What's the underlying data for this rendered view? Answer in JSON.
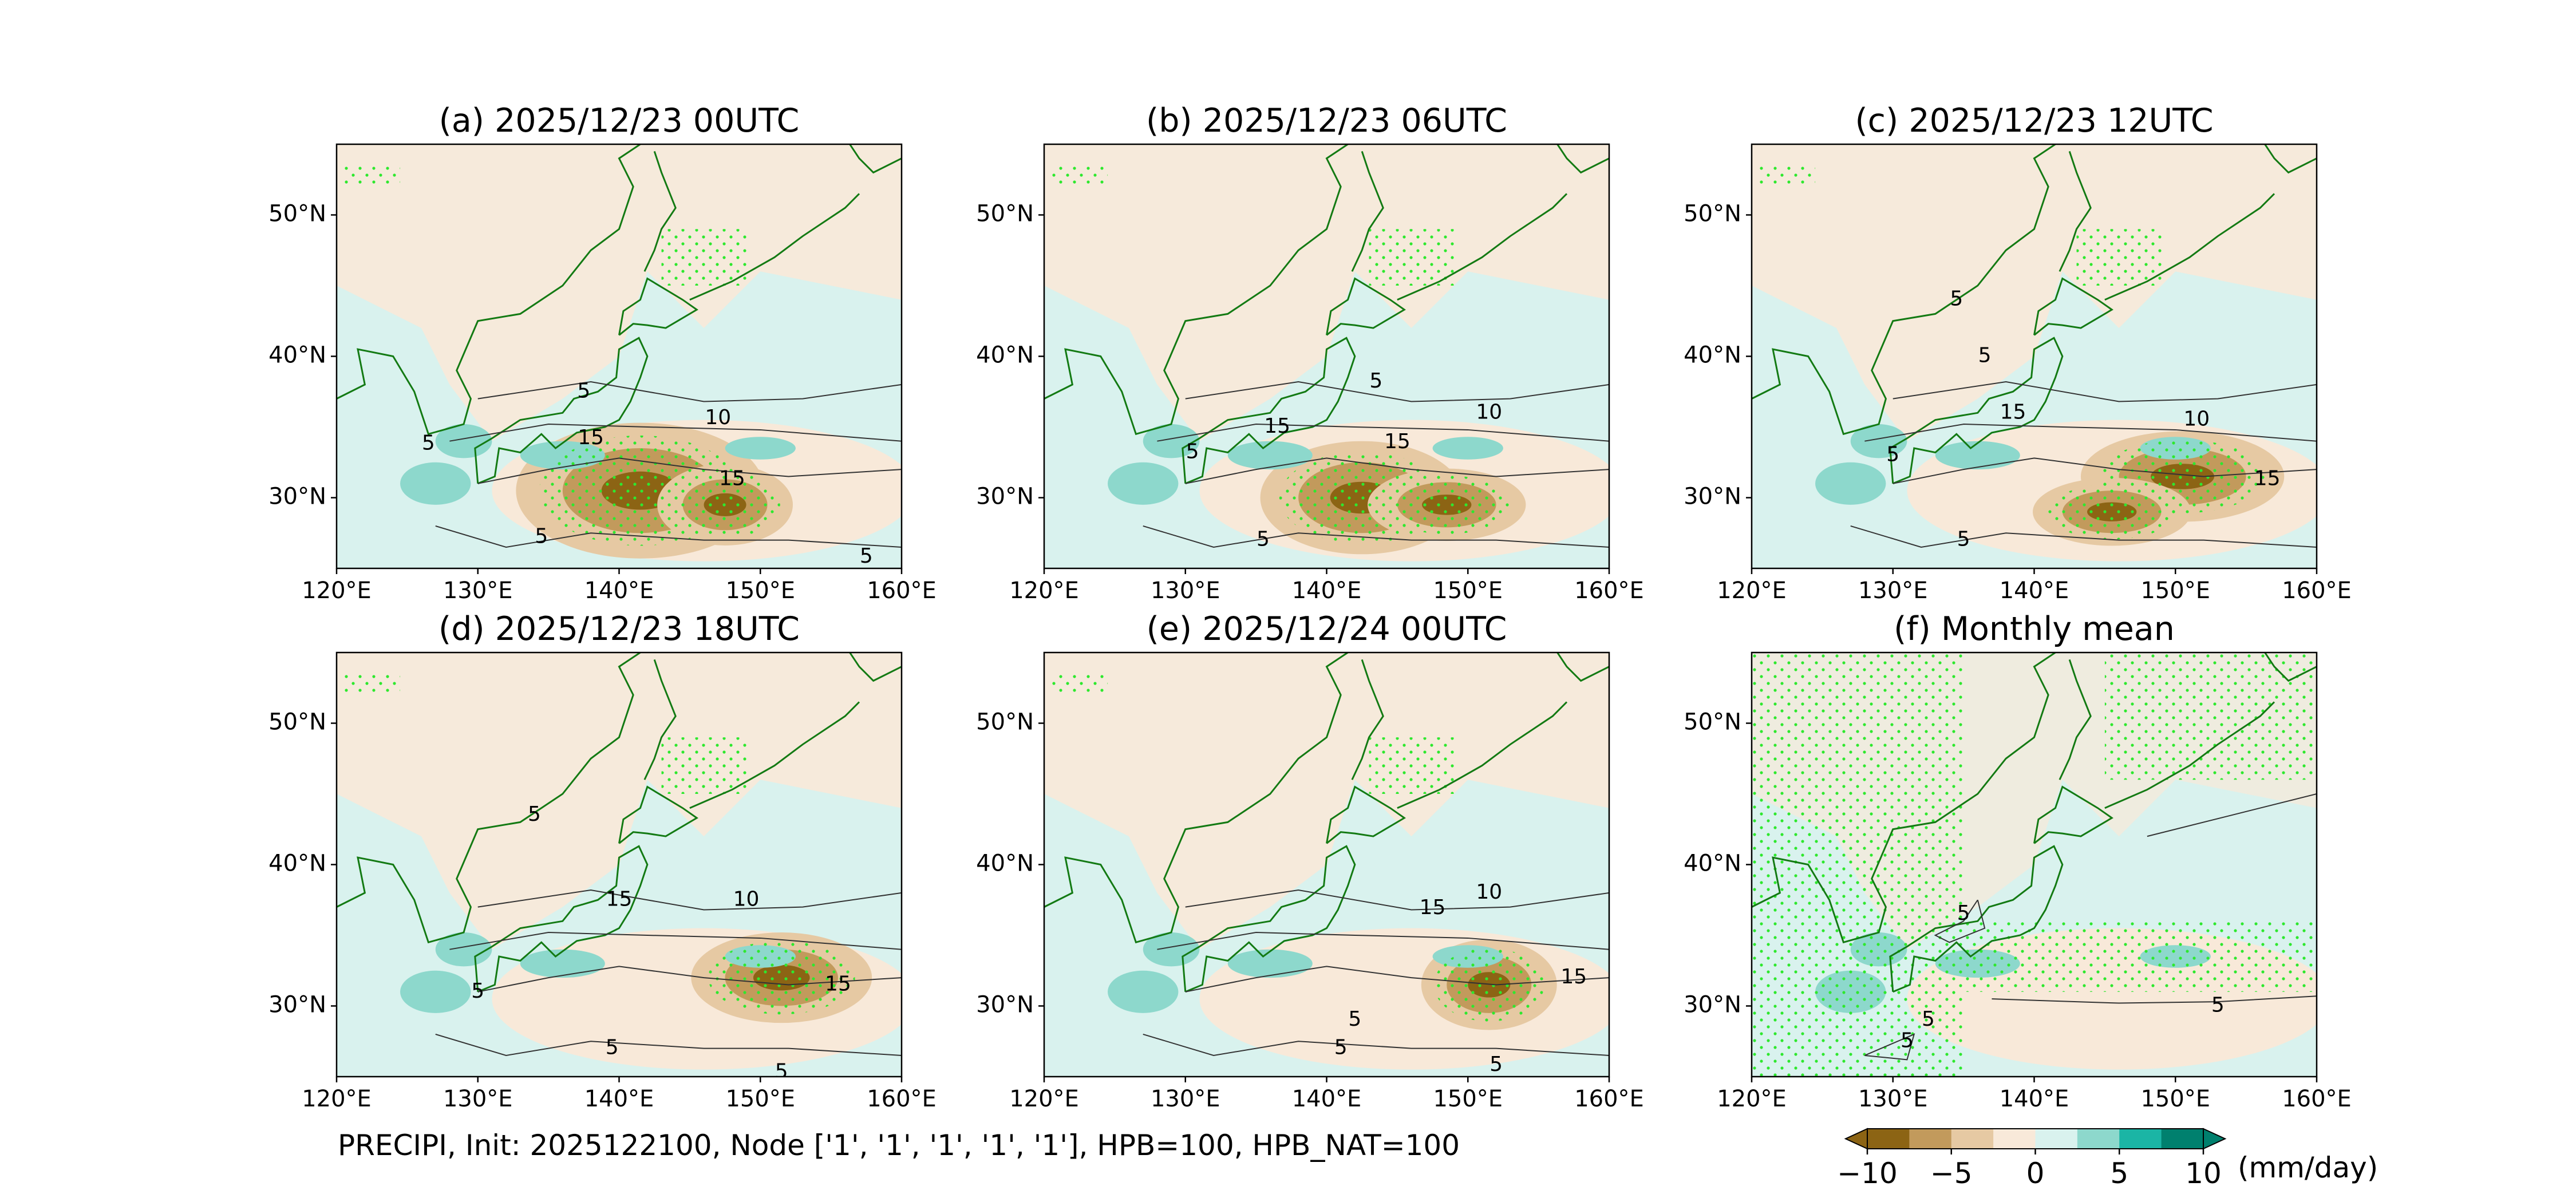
{
  "chart_data": {
    "type": "heatmap",
    "variable": "PRECIPI",
    "footer": "PRECIPI, Init: 2025122100, Node ['1', '1', '1', '1', '1'], HPB=100, HPB_NAT=100",
    "x_ticks": [
      "120°E",
      "130°E",
      "140°E",
      "150°E",
      "160°E"
    ],
    "y_ticks": [
      "30°N",
      "40°N",
      "50°N"
    ],
    "xlim": [
      120,
      160
    ],
    "ylim": [
      25,
      55
    ],
    "colorbar": {
      "levels": [
        -10,
        -7.5,
        -5,
        -2.5,
        0,
        2.5,
        5,
        7.5,
        10
      ],
      "tick_labels": [
        "−10",
        "−5",
        "0",
        "5",
        "10"
      ],
      "tick_values": [
        -10,
        -5,
        0,
        5,
        10
      ],
      "unit": "(mm/day)",
      "colors": [
        "#8c6414",
        "#c29a5c",
        "#e6c9a3",
        "#f8e9d9",
        "#d9f2ee",
        "#8dd8cc",
        "#1bb5a5",
        "#00806e"
      ],
      "extend": "both"
    },
    "panels": [
      {
        "title": "(a) 2025/12/23 00UTC",
        "contour_labels": [
          {
            "text": "5",
            "lon": 126.5,
            "lat": 33.8
          },
          {
            "text": "5",
            "lon": 137.5,
            "lat": 37.5
          },
          {
            "text": "10",
            "lon": 147.0,
            "lat": 35.6
          },
          {
            "text": "15",
            "lon": 138.0,
            "lat": 34.2
          },
          {
            "text": "15",
            "lon": 148.0,
            "lat": 31.3
          },
          {
            "text": "5",
            "lon": 134.5,
            "lat": 27.2
          },
          {
            "text": "5",
            "lon": 157.5,
            "lat": 25.8
          }
        ],
        "max_blobs": [
          {
            "lon": 141.5,
            "lat": 30.5,
            "rx": 5.5,
            "ry": 3.0
          },
          {
            "lon": 147.5,
            "lat": 29.5,
            "rx": 3.0,
            "ry": 1.8
          }
        ]
      },
      {
        "title": "(b) 2025/12/23 06UTC",
        "contour_labels": [
          {
            "text": "5",
            "lon": 143.5,
            "lat": 38.2
          },
          {
            "text": "10",
            "lon": 151.5,
            "lat": 36.0
          },
          {
            "text": "15",
            "lon": 136.5,
            "lat": 35.0
          },
          {
            "text": "15",
            "lon": 145.0,
            "lat": 33.9
          },
          {
            "text": "5",
            "lon": 130.5,
            "lat": 33.2
          },
          {
            "text": "5",
            "lon": 135.5,
            "lat": 27.0
          }
        ],
        "max_blobs": [
          {
            "lon": 142.5,
            "lat": 30.0,
            "rx": 4.5,
            "ry": 2.5
          },
          {
            "lon": 148.5,
            "lat": 29.5,
            "rx": 3.5,
            "ry": 1.6
          }
        ]
      },
      {
        "title": "(c) 2025/12/23 12UTC",
        "contour_labels": [
          {
            "text": "5",
            "lon": 134.5,
            "lat": 44.0
          },
          {
            "text": "5",
            "lon": 136.5,
            "lat": 40.0
          },
          {
            "text": "15",
            "lon": 138.5,
            "lat": 36.0
          },
          {
            "text": "10",
            "lon": 151.5,
            "lat": 35.5
          },
          {
            "text": "15",
            "lon": 156.5,
            "lat": 31.3
          },
          {
            "text": "5",
            "lon": 130.0,
            "lat": 33.0
          },
          {
            "text": "5",
            "lon": 135.0,
            "lat": 27.0
          }
        ],
        "max_blobs": [
          {
            "lon": 150.5,
            "lat": 31.5,
            "rx": 4.5,
            "ry": 2.0
          },
          {
            "lon": 145.5,
            "lat": 29.0,
            "rx": 3.5,
            "ry": 1.5
          }
        ]
      },
      {
        "title": "(d) 2025/12/23 18UTC",
        "contour_labels": [
          {
            "text": "5",
            "lon": 134.0,
            "lat": 43.5
          },
          {
            "text": "15",
            "lon": 140.0,
            "lat": 37.5
          },
          {
            "text": "10",
            "lon": 149.0,
            "lat": 37.5
          },
          {
            "text": "15",
            "lon": 155.5,
            "lat": 31.5
          },
          {
            "text": "5",
            "lon": 130.0,
            "lat": 31.0
          },
          {
            "text": "5",
            "lon": 139.5,
            "lat": 27.0
          },
          {
            "text": "5",
            "lon": 151.5,
            "lat": 25.3
          }
        ],
        "max_blobs": [
          {
            "lon": 151.5,
            "lat": 32.0,
            "rx": 4.0,
            "ry": 2.0
          }
        ]
      },
      {
        "title": "(e) 2025/12/24 00UTC",
        "contour_labels": [
          {
            "text": "10",
            "lon": 151.5,
            "lat": 38.0
          },
          {
            "text": "15",
            "lon": 147.5,
            "lat": 36.9
          },
          {
            "text": "15",
            "lon": 157.5,
            "lat": 32.0
          },
          {
            "text": "5",
            "lon": 142.0,
            "lat": 29.0
          },
          {
            "text": "5",
            "lon": 141.0,
            "lat": 27.0
          },
          {
            "text": "5",
            "lon": 152.0,
            "lat": 25.8
          }
        ],
        "max_blobs": [
          {
            "lon": 151.5,
            "lat": 31.5,
            "rx": 3.0,
            "ry": 2.0
          }
        ]
      },
      {
        "title": "(f) Monthly mean",
        "contour_labels": [
          {
            "text": "5",
            "lon": 135.0,
            "lat": 36.5
          },
          {
            "text": "5",
            "lon": 153.0,
            "lat": 30.0
          },
          {
            "text": "5",
            "lon": 132.5,
            "lat": 29.0
          },
          {
            "text": "5",
            "lon": 131.0,
            "lat": 27.5
          }
        ],
        "max_blobs": []
      }
    ]
  }
}
